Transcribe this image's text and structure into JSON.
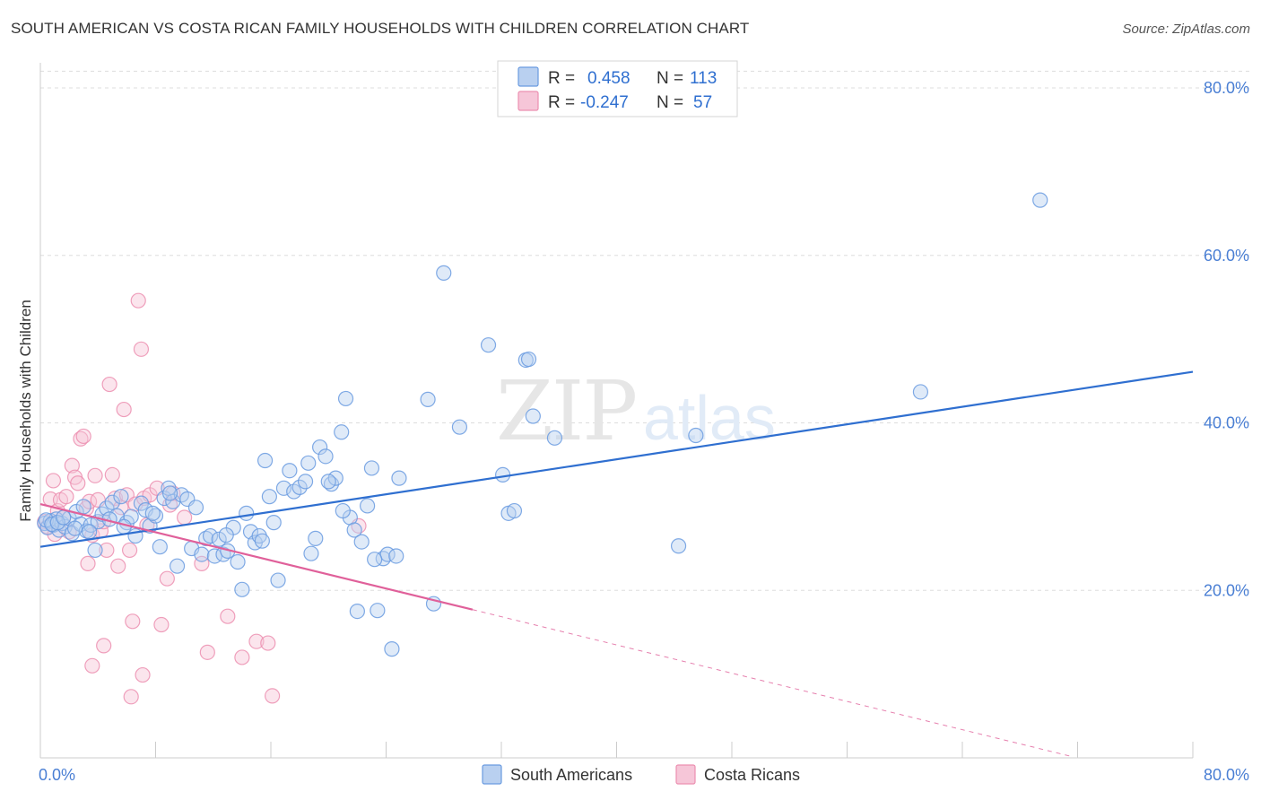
{
  "title": "SOUTH AMERICAN VS COSTA RICAN FAMILY HOUSEHOLDS WITH CHILDREN CORRELATION CHART",
  "source": "Source: ZipAtlas.com",
  "watermark": {
    "zip": "ZIP",
    "atlas": "atlas"
  },
  "colors": {
    "south_american": "#6a9be0",
    "south_american_fill": "#b9d0f0",
    "costa_rican": "#ec8fb0",
    "costa_rican_fill": "#f6c6d8",
    "blue_line": "#2f6fd0",
    "pink_line": "#e0609a",
    "axis_text": "#4a7fd4",
    "grid": "#dddddd"
  },
  "legend": {
    "row1": {
      "r_label": "R =",
      "r_value": "0.458",
      "n_label": "N =",
      "n_value": "113"
    },
    "row2": {
      "r_label": "R =",
      "r_value": "-0.247",
      "n_label": "N =",
      "n_value": "57"
    }
  },
  "chart_data": {
    "type": "scatter",
    "title": "SOUTH AMERICAN VS COSTA RICAN FAMILY HOUSEHOLDS WITH CHILDREN CORRELATION CHART",
    "xlabel": "",
    "ylabel": "Family Households with Children",
    "xlim": [
      0,
      80
    ],
    "ylim": [
      0,
      83
    ],
    "x_tick_labels": [
      "0.0%",
      "80.0%"
    ],
    "y_ticks": [
      20,
      40,
      60,
      80
    ],
    "y_tick_labels": [
      "20.0%",
      "40.0%",
      "60.0%",
      "80.0%"
    ],
    "grid": true,
    "series": [
      {
        "name": "South Americans",
        "color": "#6a9be0",
        "points": [
          [
            0.3,
            28.0
          ],
          [
            0.5,
            27.5
          ],
          [
            0.7,
            28.3
          ],
          [
            0.9,
            27.8
          ],
          [
            1.1,
            28.5
          ],
          [
            1.3,
            27.2
          ],
          [
            1.5,
            28.0
          ],
          [
            1.7,
            27.6
          ],
          [
            2.0,
            28.6
          ],
          [
            2.2,
            26.8
          ],
          [
            2.5,
            29.4
          ],
          [
            2.8,
            27.9
          ],
          [
            3.0,
            30.0
          ],
          [
            3.2,
            27.1
          ],
          [
            3.5,
            27.8
          ],
          [
            3.8,
            24.8
          ],
          [
            4.0,
            28.2
          ],
          [
            4.3,
            29.1
          ],
          [
            4.6,
            29.8
          ],
          [
            5.0,
            30.5
          ],
          [
            5.3,
            28.9
          ],
          [
            5.6,
            31.2
          ],
          [
            6.0,
            28.1
          ],
          [
            6.3,
            28.8
          ],
          [
            6.6,
            26.5
          ],
          [
            7.0,
            30.4
          ],
          [
            7.3,
            29.6
          ],
          [
            7.6,
            27.7
          ],
          [
            8.0,
            28.9
          ],
          [
            8.3,
            25.2
          ],
          [
            8.6,
            31.0
          ],
          [
            8.9,
            32.2
          ],
          [
            9.2,
            30.6
          ],
          [
            9.5,
            22.9
          ],
          [
            9.8,
            31.4
          ],
          [
            10.2,
            30.9
          ],
          [
            10.5,
            25.0
          ],
          [
            10.8,
            29.9
          ],
          [
            11.2,
            24.3
          ],
          [
            11.5,
            26.2
          ],
          [
            11.8,
            26.5
          ],
          [
            12.1,
            24.1
          ],
          [
            12.4,
            26.1
          ],
          [
            12.7,
            24.3
          ],
          [
            13.0,
            24.7
          ],
          [
            13.4,
            27.5
          ],
          [
            13.7,
            23.4
          ],
          [
            14.0,
            20.1
          ],
          [
            14.3,
            29.2
          ],
          [
            14.6,
            27.0
          ],
          [
            14.9,
            25.7
          ],
          [
            15.2,
            26.5
          ],
          [
            15.6,
            35.5
          ],
          [
            15.9,
            31.2
          ],
          [
            16.2,
            28.1
          ],
          [
            16.5,
            21.2
          ],
          [
            16.9,
            32.2
          ],
          [
            17.3,
            34.3
          ],
          [
            17.6,
            31.8
          ],
          [
            18.0,
            32.3
          ],
          [
            18.4,
            33.0
          ],
          [
            18.8,
            24.4
          ],
          [
            19.1,
            26.2
          ],
          [
            19.4,
            37.1
          ],
          [
            19.8,
            36.0
          ],
          [
            20.2,
            32.7
          ],
          [
            20.5,
            33.4
          ],
          [
            20.9,
            38.9
          ],
          [
            21.2,
            42.9
          ],
          [
            21.5,
            28.7
          ],
          [
            21.8,
            27.2
          ],
          [
            22.0,
            17.5
          ],
          [
            22.3,
            25.8
          ],
          [
            22.7,
            30.1
          ],
          [
            23.0,
            34.6
          ],
          [
            23.4,
            17.6
          ],
          [
            23.8,
            23.8
          ],
          [
            24.1,
            24.3
          ],
          [
            24.4,
            13.0
          ],
          [
            24.9,
            33.4
          ],
          [
            26.9,
            42.8
          ],
          [
            27.3,
            18.4
          ],
          [
            28.0,
            57.9
          ],
          [
            29.1,
            39.5
          ],
          [
            31.1,
            49.3
          ],
          [
            32.1,
            33.8
          ],
          [
            32.5,
            29.2
          ],
          [
            32.9,
            29.5
          ],
          [
            33.7,
            47.5
          ],
          [
            33.9,
            47.6
          ],
          [
            34.2,
            40.8
          ],
          [
            35.7,
            38.2
          ],
          [
            44.3,
            25.3
          ],
          [
            45.5,
            38.5
          ],
          [
            61.1,
            43.7
          ],
          [
            69.4,
            66.6
          ],
          [
            0.4,
            28.4
          ],
          [
            0.8,
            27.9
          ],
          [
            1.2,
            28.1
          ],
          [
            1.6,
            28.7
          ],
          [
            2.4,
            27.4
          ],
          [
            3.4,
            27.0
          ],
          [
            4.8,
            28.5
          ],
          [
            5.8,
            27.6
          ],
          [
            7.8,
            29.2
          ],
          [
            9.0,
            31.6
          ],
          [
            12.9,
            26.6
          ],
          [
            15.4,
            25.9
          ],
          [
            18.6,
            35.2
          ],
          [
            21.0,
            29.5
          ],
          [
            23.2,
            23.7
          ],
          [
            24.7,
            24.1
          ],
          [
            20.0,
            33.0
          ]
        ]
      },
      {
        "name": "Costa Ricans",
        "color": "#ec8fb0",
        "points": [
          [
            0.3,
            28.2
          ],
          [
            0.5,
            27.6
          ],
          [
            0.7,
            30.9
          ],
          [
            0.9,
            33.1
          ],
          [
            1.0,
            26.7
          ],
          [
            1.2,
            29.5
          ],
          [
            1.4,
            30.8
          ],
          [
            1.6,
            28.7
          ],
          [
            1.8,
            31.2
          ],
          [
            2.0,
            27.0
          ],
          [
            2.2,
            34.9
          ],
          [
            2.4,
            33.5
          ],
          [
            2.6,
            32.8
          ],
          [
            2.8,
            38.1
          ],
          [
            3.0,
            38.4
          ],
          [
            3.2,
            29.8
          ],
          [
            3.4,
            30.6
          ],
          [
            3.6,
            26.6
          ],
          [
            3.8,
            33.7
          ],
          [
            4.0,
            30.8
          ],
          [
            4.2,
            27.1
          ],
          [
            4.4,
            28.2
          ],
          [
            4.6,
            24.8
          ],
          [
            4.8,
            44.6
          ],
          [
            5.0,
            33.8
          ],
          [
            5.2,
            31.0
          ],
          [
            5.4,
            22.9
          ],
          [
            5.6,
            29.9
          ],
          [
            5.8,
            41.6
          ],
          [
            6.0,
            31.4
          ],
          [
            6.2,
            24.8
          ],
          [
            6.4,
            16.3
          ],
          [
            6.6,
            30.3
          ],
          [
            6.8,
            54.6
          ],
          [
            7.0,
            48.8
          ],
          [
            7.2,
            31.0
          ],
          [
            7.4,
            27.8
          ],
          [
            7.6,
            31.4
          ],
          [
            8.1,
            32.2
          ],
          [
            8.4,
            15.9
          ],
          [
            8.8,
            21.4
          ],
          [
            9.0,
            30.2
          ],
          [
            9.2,
            31.6
          ],
          [
            10.0,
            28.7
          ],
          [
            11.2,
            23.2
          ],
          [
            11.6,
            12.6
          ],
          [
            13.0,
            16.9
          ],
          [
            14.0,
            12.0
          ],
          [
            15.0,
            13.9
          ],
          [
            15.8,
            13.7
          ],
          [
            16.1,
            7.4
          ],
          [
            3.3,
            23.2
          ],
          [
            3.6,
            11.0
          ],
          [
            4.4,
            13.4
          ],
          [
            7.1,
            9.9
          ],
          [
            22.1,
            27.7
          ],
          [
            6.3,
            7.3
          ]
        ]
      }
    ],
    "trend_lines": [
      {
        "series": "South Americans",
        "from": [
          0,
          25.2
        ],
        "to": [
          80,
          46.1
        ],
        "style": "solid"
      },
      {
        "series": "Costa Ricans",
        "from": [
          0,
          30.3
        ],
        "to": [
          30,
          17.7
        ],
        "style": "solid"
      },
      {
        "series": "Costa Ricans",
        "from": [
          30,
          17.7
        ],
        "to": [
          71.5,
          0.2
        ],
        "style": "dashed"
      }
    ]
  },
  "bottom_legend": {
    "south_american_label": "South Americans",
    "costa_rican_label": "Costa Ricans"
  }
}
